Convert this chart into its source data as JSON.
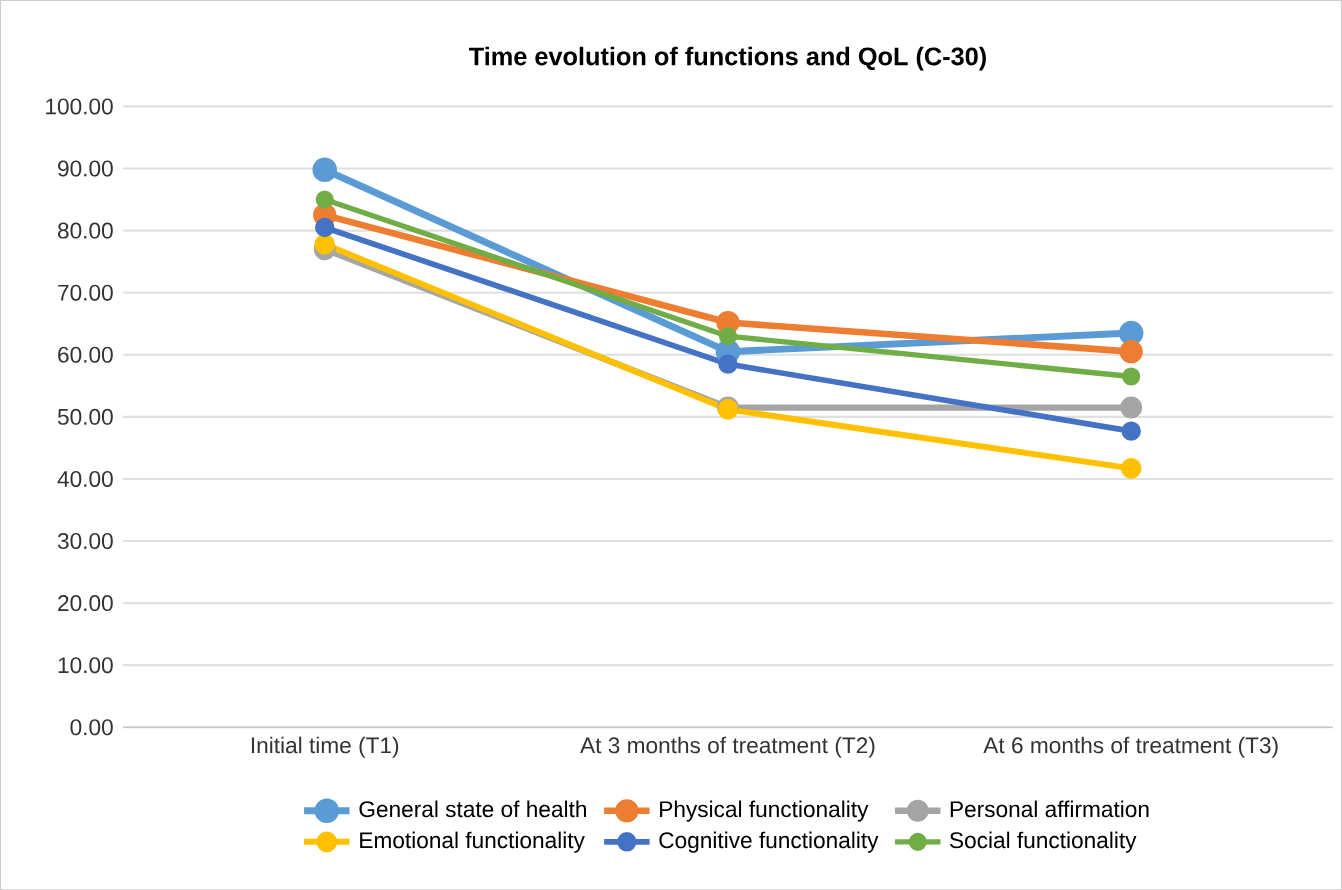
{
  "chart_data": {
    "type": "line",
    "title": "Time evolution of functions and QoL (C-30)",
    "categories": [
      "Initial time (T1)",
      "At 3 months of treatment (T2)",
      "At 6 months of treatment (T3)"
    ],
    "series": [
      {
        "name": "General state of health",
        "color": "#5b9bd5",
        "values": [
          89.8,
          60.5,
          63.5
        ]
      },
      {
        "name": "Physical functionality",
        "color": "#ed7d31",
        "values": [
          82.5,
          65.2,
          60.5
        ]
      },
      {
        "name": "Personal affirmation",
        "color": "#a5a5a5",
        "values": [
          77.0,
          51.5,
          51.5
        ]
      },
      {
        "name": "Emotional functionality",
        "color": "#ffc000",
        "values": [
          77.8,
          51.2,
          41.7
        ]
      },
      {
        "name": "Cognitive functionality",
        "color": "#4472c4",
        "values": [
          80.5,
          58.5,
          47.7
        ]
      },
      {
        "name": "Social functionality",
        "color": "#70ad47",
        "values": [
          85.0,
          63.0,
          56.5
        ]
      }
    ],
    "ylim": [
      0,
      100
    ],
    "yticks": [
      {
        "value": 0,
        "label": "0.00"
      },
      {
        "value": 10,
        "label": "10.00"
      },
      {
        "value": 20,
        "label": "20.00"
      },
      {
        "value": 30,
        "label": "30.00"
      },
      {
        "value": 40,
        "label": "40.00"
      },
      {
        "value": 50,
        "label": "50.00"
      },
      {
        "value": 60,
        "label": "60.00"
      },
      {
        "value": 70,
        "label": "70.00"
      },
      {
        "value": 80,
        "label": "80.00"
      },
      {
        "value": 90,
        "label": "90.00"
      },
      {
        "value": 100,
        "label": "100.00"
      }
    ],
    "grid": "y",
    "legend": "bottom",
    "marker": "circle",
    "line_style": "solid"
  }
}
